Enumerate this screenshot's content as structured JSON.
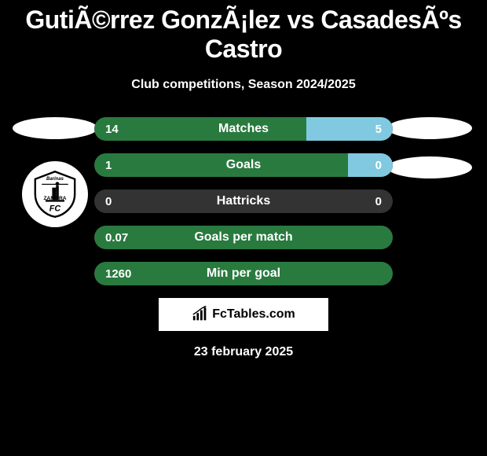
{
  "title": "GutiÃ©rrez GonzÃ¡lez vs CasadesÃºs Castro",
  "subtitle": "Club competitions, Season 2024/2025",
  "date": "23 february 2025",
  "brand": "FcTables.com",
  "colors": {
    "background": "#000000",
    "text": "#ffffff",
    "bar_left": "#297a3e",
    "bar_right": "#80c9e0",
    "bar_bg": "#333333",
    "brand_bg": "#ffffff",
    "brand_text": "#000000"
  },
  "club_badge": {
    "name": "Zamora FC",
    "top_text": "Barinas",
    "bottom_text": "FC"
  },
  "rows": [
    {
      "label": "Matches",
      "left_value": "14",
      "right_value": "5",
      "left_pct": 71,
      "right_pct": 29,
      "left_color": "#297a3e",
      "right_color": "#80c9e0"
    },
    {
      "label": "Goals",
      "left_value": "1",
      "right_value": "0",
      "left_pct": 100,
      "right_pct": 15,
      "left_color": "#297a3e",
      "right_color": "#80c9e0"
    },
    {
      "label": "Hattricks",
      "left_value": "0",
      "right_value": "0",
      "left_pct": 0,
      "right_pct": 0,
      "left_color": "#297a3e",
      "right_color": "#80c9e0"
    },
    {
      "label": "Goals per match",
      "left_value": "0.07",
      "right_value": "",
      "left_pct": 100,
      "right_pct": 0,
      "left_color": "#297a3e",
      "right_color": "#80c9e0"
    },
    {
      "label": "Min per goal",
      "left_value": "1260",
      "right_value": "",
      "left_pct": 100,
      "right_pct": 0,
      "left_color": "#297a3e",
      "right_color": "#80c9e0"
    }
  ]
}
